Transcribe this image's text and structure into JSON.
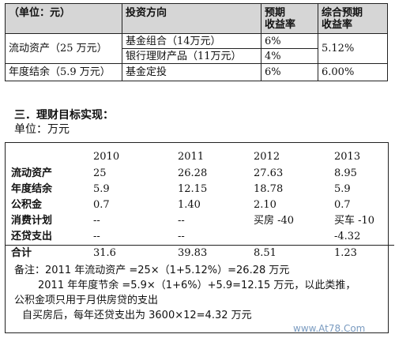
{
  "table1": {
    "headers": [
      "（单位：元）",
      "投资方向",
      "预期\n收益率",
      "综合预期\n收益率"
    ],
    "rows": [
      {
        "category": "流动资产（25 万元）",
        "directions": [
          "基金组合（14万元）",
          "银行理财产品（11万元）"
        ],
        "rates": [
          "6%",
          "4%"
        ],
        "combined": "5.12%"
      },
      {
        "category": "年度结余（5.9 万元）",
        "directions": [
          "基金定投"
        ],
        "rates": [
          "6%"
        ],
        "combined": "6.00%"
      }
    ]
  },
  "section": {
    "heading": "三．理财目标实现：",
    "unit": "单位：万元"
  },
  "table2": {
    "years": [
      "2010",
      "2011",
      "2012",
      "2013"
    ],
    "rows": [
      {
        "label": "流动资产",
        "values": [
          "25",
          "26.28",
          "27.63",
          "8.95"
        ]
      },
      {
        "label": "年度结余",
        "values": [
          "5.9",
          "12.15",
          "18.78",
          "5.9"
        ]
      },
      {
        "label": "公积金",
        "values": [
          "0.7",
          "1.40",
          "2.10",
          "0.7"
        ]
      },
      {
        "label": "消费计划",
        "values": [
          "--",
          "--",
          "买房 -40",
          "买车 -10"
        ]
      },
      {
        "label": "还贷支出",
        "values": [
          "--",
          "--",
          "",
          "-4.32"
        ]
      },
      {
        "label": "合计",
        "values": [
          "31.6",
          "39.83",
          "8.51",
          "1.23"
        ]
      }
    ]
  },
  "notes": [
    "备注：2011 年流动资产 =25×（1+5.12%）=26.28 万元",
    "2011 年年度节余 =5.9×（1+6%）+5.9=12.15 万元，以此类推，",
    "公积金项只用于月供房贷的支出",
    "自买房后，每年还贷支出为 3600×12=4.32 万元"
  ],
  "watermark": "www.At78.Com"
}
